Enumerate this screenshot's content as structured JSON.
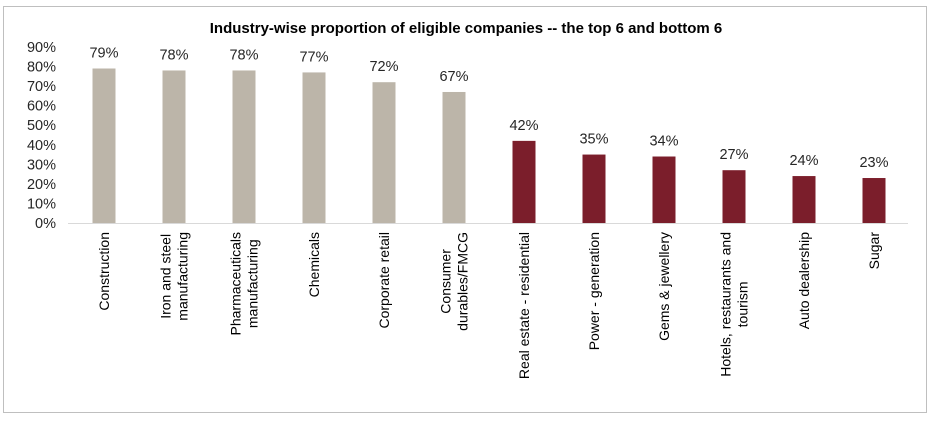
{
  "chart_data": {
    "type": "bar",
    "title": "Industry-wise proportion of eligible companies -- the top 6 and bottom 6",
    "xlabel": "",
    "ylabel": "",
    "ylim": [
      0,
      90
    ],
    "yticks": [
      "0%",
      "10%",
      "20%",
      "30%",
      "40%",
      "50%",
      "60%",
      "70%",
      "80%",
      "90%"
    ],
    "ytick_values": [
      0,
      10,
      20,
      30,
      40,
      50,
      60,
      70,
      80,
      90
    ],
    "grid": false,
    "legend": "none",
    "categories": [
      [
        "Construction"
      ],
      [
        "Iron and steel",
        "manufacturing"
      ],
      [
        "Pharmaceuticals",
        "manufacturing"
      ],
      [
        "Chemicals"
      ],
      [
        "Corporate retail"
      ],
      [
        "Consumer",
        "durables/FMCG"
      ],
      [
        "Real estate - residential"
      ],
      [
        "Power - generation"
      ],
      [
        "Gems & jewellery"
      ],
      [
        "Hotels, restaurants and",
        "tourism"
      ],
      [
        "Auto dealership"
      ],
      [
        "Sugar"
      ]
    ],
    "values": [
      79,
      78,
      78,
      77,
      72,
      67,
      42,
      35,
      34,
      27,
      24,
      23
    ],
    "data_labels": [
      "79%",
      "78%",
      "78%",
      "77%",
      "72%",
      "67%",
      "42%",
      "35%",
      "34%",
      "27%",
      "24%",
      "23%"
    ],
    "groups": [
      "top",
      "top",
      "top",
      "top",
      "top",
      "top",
      "bottom",
      "bottom",
      "bottom",
      "bottom",
      "bottom",
      "bottom"
    ],
    "colors": {
      "top": "#bcb5a9",
      "bottom": "#7b1e2b",
      "axis": "#d9d9d9",
      "border": "#bfbfbf"
    }
  }
}
